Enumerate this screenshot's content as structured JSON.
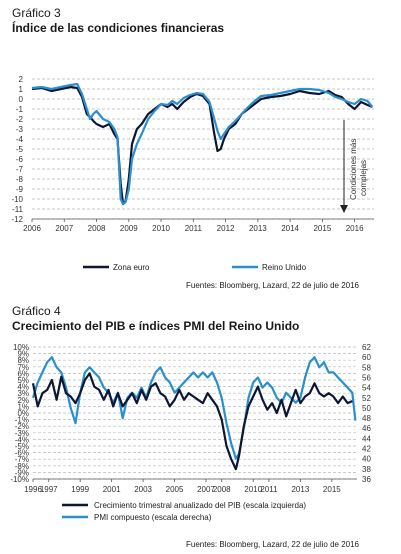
{
  "chart_data": [
    {
      "type": "line",
      "number": "Gráfico 3",
      "title": "Índice de las condiciones financieras",
      "x_range": [
        2006,
        2016.6
      ],
      "x_ticks": [
        "2006",
        "2007",
        "2008",
        "2009",
        "2010",
        "2011",
        "2012",
        "2013",
        "2014",
        "2015",
        "2016"
      ],
      "ylim": [
        -12,
        2
      ],
      "y_ticks": [
        2,
        1,
        0,
        -1,
        -2,
        -3,
        -4,
        -5,
        -6,
        -7,
        -8,
        -9,
        -10,
        -11,
        -12
      ],
      "annotation": [
        "Condiciones más",
        "complejas"
      ],
      "grid": "horizontal dashed",
      "legend_position": "bottom",
      "series": [
        {
          "name": "Zona euro",
          "color": "#0d1633",
          "x": [
            2006.0,
            2006.3,
            2006.6,
            2006.9,
            2007.2,
            2007.4,
            2007.55,
            2007.7,
            2007.8,
            2007.9,
            2008.0,
            2008.2,
            2008.4,
            2008.55,
            2008.65,
            2008.75,
            2008.82,
            2008.9,
            2009.0,
            2009.1,
            2009.25,
            2009.4,
            2009.6,
            2009.8,
            2010.0,
            2010.2,
            2010.35,
            2010.5,
            2010.7,
            2010.9,
            2011.1,
            2011.3,
            2011.5,
            2011.65,
            2011.75,
            2011.85,
            2011.95,
            2012.1,
            2012.3,
            2012.5,
            2012.7,
            2012.9,
            2013.1,
            2013.4,
            2013.7,
            2014.0,
            2014.3,
            2014.6,
            2014.9,
            2015.2,
            2015.4,
            2015.6,
            2015.8,
            2016.0,
            2016.2,
            2016.4,
            2016.55
          ],
          "y": [
            1.0,
            1.1,
            0.8,
            1.0,
            1.2,
            1.1,
            0.2,
            -1.5,
            -1.8,
            -2.2,
            -2.5,
            -2.8,
            -2.5,
            -3.5,
            -4.0,
            -8.5,
            -10.5,
            -10.2,
            -8.0,
            -4.5,
            -3.0,
            -2.5,
            -1.5,
            -1.0,
            -0.5,
            -0.8,
            -0.5,
            -1.0,
            -0.3,
            0.2,
            0.5,
            0.3,
            -0.5,
            -3.5,
            -5.2,
            -5.0,
            -4.0,
            -3.0,
            -2.5,
            -1.5,
            -1.0,
            -0.5,
            0.0,
            0.2,
            0.3,
            0.5,
            0.8,
            0.6,
            0.5,
            0.8,
            0.4,
            0.2,
            -0.5,
            -1.0,
            -0.3,
            -0.6,
            -0.8
          ]
        },
        {
          "name": "Reino Unido",
          "color": "#2a8fce",
          "x": [
            2006.0,
            2006.3,
            2006.6,
            2006.9,
            2007.2,
            2007.4,
            2007.55,
            2007.7,
            2007.8,
            2007.9,
            2008.0,
            2008.2,
            2008.4,
            2008.55,
            2008.65,
            2008.75,
            2008.82,
            2008.9,
            2009.0,
            2009.1,
            2009.25,
            2009.4,
            2009.6,
            2009.8,
            2010.0,
            2010.2,
            2010.35,
            2010.5,
            2010.7,
            2010.9,
            2011.1,
            2011.3,
            2011.5,
            2011.65,
            2011.75,
            2011.85,
            2011.95,
            2012.1,
            2012.3,
            2012.5,
            2012.7,
            2012.9,
            2013.1,
            2013.4,
            2013.7,
            2014.0,
            2014.3,
            2014.6,
            2014.9,
            2015.2,
            2015.4,
            2015.6,
            2015.8,
            2016.0,
            2016.2,
            2016.4,
            2016.55
          ],
          "y": [
            1.1,
            1.2,
            1.0,
            1.2,
            1.4,
            1.5,
            0.5,
            -1.0,
            -2.0,
            -1.5,
            -1.2,
            -2.0,
            -2.3,
            -3.0,
            -3.8,
            -10.0,
            -10.5,
            -10.3,
            -9.0,
            -6.0,
            -4.5,
            -3.5,
            -2.0,
            -1.2,
            -0.5,
            -0.6,
            -0.2,
            -0.5,
            0.1,
            0.4,
            0.6,
            0.5,
            -0.3,
            -2.0,
            -3.2,
            -4.0,
            -3.5,
            -2.8,
            -2.2,
            -1.5,
            -0.8,
            -0.2,
            0.3,
            0.4,
            0.6,
            0.8,
            1.0,
            1.0,
            0.9,
            0.6,
            0.2,
            0.0,
            -0.3,
            -0.5,
            0.0,
            -0.2,
            -0.8
          ]
        }
      ],
      "source": "Fuentes: Bloomberg, Lazard, 22 de julio de 2016"
    },
    {
      "type": "line",
      "number": "Gráfico 4",
      "title": "Crecimiento del PIB e índices PMI del Reino Unido",
      "x_range": [
        1996,
        2016.6
      ],
      "x_ticks": [
        "1996",
        "1997",
        "1999",
        "2001",
        "2003",
        "2005",
        "2007",
        "2008",
        "2010",
        "2011",
        "2013",
        "2015"
      ],
      "ylim_left": [
        -10,
        10
      ],
      "y_ticks_left": [
        "10%",
        "9%",
        "8%",
        "7%",
        "6%",
        "5%",
        "4%",
        "3%",
        "2%",
        "1%",
        "0%",
        "-1%",
        "-2%",
        "-3%",
        "-4%",
        "-5%",
        "-6%",
        "-7%",
        "-8%",
        "-9%",
        "-10%"
      ],
      "ylim_right": [
        36,
        62
      ],
      "y_ticks_right": [
        "62",
        "60",
        "58",
        "56",
        "54",
        "52",
        "50",
        "48",
        "46",
        "44",
        "42",
        "40",
        "38",
        "36"
      ],
      "grid": "horizontal dashed",
      "legend_position": "bottom",
      "series": [
        {
          "name": "Crecimiento trimestral anualizado del PIB (escala izquierda)",
          "color": "#0d1633",
          "axis": "left",
          "x": [
            1996.0,
            1996.3,
            1996.6,
            1996.9,
            1997.2,
            1997.5,
            1997.8,
            1998.1,
            1998.4,
            1998.7,
            1999.0,
            1999.3,
            1999.6,
            1999.9,
            2000.2,
            2000.5,
            2000.8,
            2001.1,
            2001.4,
            2001.7,
            2002.0,
            2002.3,
            2002.6,
            2002.9,
            2003.2,
            2003.5,
            2003.8,
            2004.1,
            2004.4,
            2004.7,
            2005.0,
            2005.3,
            2005.6,
            2005.9,
            2006.2,
            2006.5,
            2006.8,
            2007.1,
            2007.4,
            2007.7,
            2008.0,
            2008.3,
            2008.6,
            2008.9,
            2009.1,
            2009.4,
            2009.7,
            2010.0,
            2010.3,
            2010.6,
            2010.9,
            2011.2,
            2011.5,
            2011.8,
            2012.1,
            2012.4,
            2012.7,
            2013.0,
            2013.3,
            2013.6,
            2013.9,
            2014.2,
            2014.5,
            2014.8,
            2015.1,
            2015.4,
            2015.7,
            2016.0,
            2016.3
          ],
          "y": [
            4.5,
            1.0,
            3.0,
            3.5,
            5.0,
            2.0,
            5.5,
            3.0,
            2.5,
            1.5,
            3.0,
            5.0,
            6.0,
            4.0,
            3.5,
            2.0,
            3.5,
            1.0,
            3.0,
            1.0,
            2.0,
            3.0,
            1.5,
            3.5,
            2.0,
            4.0,
            4.5,
            3.0,
            2.5,
            1.0,
            2.0,
            3.5,
            2.0,
            3.0,
            2.5,
            2.0,
            1.5,
            3.0,
            2.0,
            1.0,
            -1.0,
            -5.0,
            -7.0,
            -8.5,
            -6.5,
            -2.0,
            1.0,
            2.5,
            4.0,
            2.0,
            0.5,
            1.5,
            0.0,
            2.0,
            -0.5,
            1.5,
            3.5,
            1.5,
            2.5,
            3.0,
            4.5,
            3.0,
            2.5,
            3.0,
            2.5,
            1.5,
            2.5,
            1.5,
            1.8
          ]
        },
        {
          "name": "PMI compuesto (escala derecha)",
          "color": "#2a8fce",
          "axis": "right",
          "x": [
            1996.0,
            1996.3,
            1996.6,
            1996.9,
            1997.2,
            1997.5,
            1997.8,
            1998.1,
            1998.4,
            1998.7,
            1999.0,
            1999.3,
            1999.6,
            1999.9,
            2000.2,
            2000.5,
            2000.8,
            2001.1,
            2001.4,
            2001.7,
            2002.0,
            2002.3,
            2002.6,
            2002.9,
            2003.2,
            2003.5,
            2003.8,
            2004.1,
            2004.4,
            2004.7,
            2005.0,
            2005.3,
            2005.6,
            2005.9,
            2006.2,
            2006.5,
            2006.8,
            2007.1,
            2007.4,
            2007.7,
            2008.0,
            2008.3,
            2008.6,
            2008.9,
            2009.1,
            2009.4,
            2009.7,
            2010.0,
            2010.3,
            2010.6,
            2010.9,
            2011.2,
            2011.5,
            2011.8,
            2012.1,
            2012.4,
            2012.7,
            2013.0,
            2013.3,
            2013.6,
            2013.9,
            2014.2,
            2014.5,
            2014.8,
            2015.1,
            2015.4,
            2015.7,
            2016.0,
            2016.3,
            2016.5
          ],
          "y": [
            52,
            55,
            57,
            59,
            60,
            58,
            57,
            54,
            50,
            47,
            53,
            57,
            58,
            57,
            56,
            54,
            53,
            51,
            53,
            48,
            52,
            53,
            52,
            54,
            52,
            55,
            57,
            58,
            56,
            55,
            53,
            54,
            55,
            56,
            57,
            56,
            57,
            56,
            57,
            55,
            52,
            47,
            43,
            40,
            41,
            46,
            52,
            55,
            56,
            54,
            55,
            54,
            52,
            51,
            53,
            52,
            51,
            52,
            56,
            59,
            60,
            58,
            59,
            57,
            57,
            56,
            55,
            54,
            53,
            47.5
          ]
        }
      ],
      "source": "Fuentes: Bloomberg, Lazard, 22 de julio de 2016"
    }
  ]
}
